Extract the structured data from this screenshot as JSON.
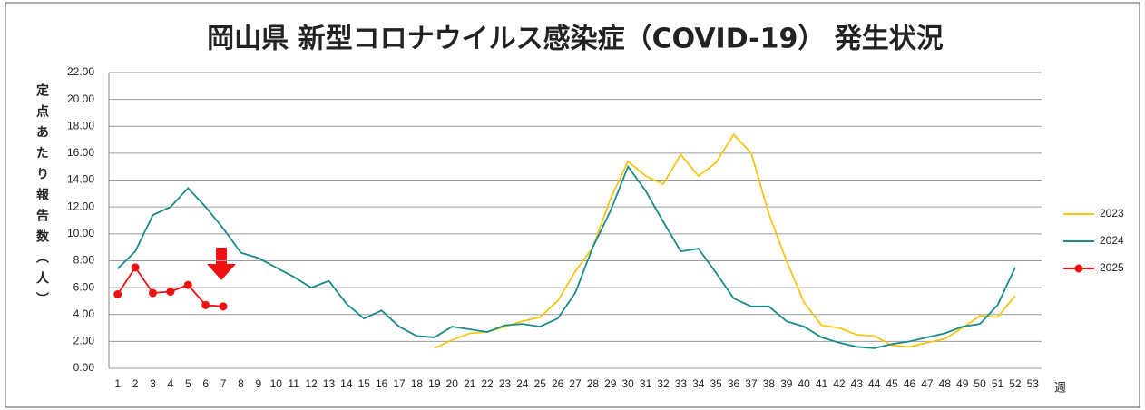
{
  "chart_data": {
    "type": "line",
    "title": "岡山県 新型コロナウイルス感染症（COVID-19） 発生状況",
    "y_label": "定点あたり報告数（人）",
    "x_label": "週",
    "categories": [
      "1",
      "2",
      "3",
      "4",
      "5",
      "6",
      "7",
      "8",
      "9",
      "10",
      "11",
      "12",
      "13",
      "14",
      "15",
      "16",
      "17",
      "18",
      "19",
      "20",
      "21",
      "22",
      "23",
      "24",
      "25",
      "26",
      "27",
      "28",
      "29",
      "30",
      "31",
      "32",
      "33",
      "34",
      "35",
      "36",
      "37",
      "38",
      "39",
      "40",
      "41",
      "42",
      "43",
      "44",
      "45",
      "46",
      "47",
      "48",
      "49",
      "50",
      "51",
      "52",
      "53"
    ],
    "series": [
      {
        "name": "2023",
        "color": "#f5c518",
        "markers": false,
        "values": [
          null,
          null,
          null,
          null,
          null,
          null,
          null,
          null,
          null,
          null,
          null,
          null,
          null,
          null,
          null,
          null,
          null,
          null,
          1.5,
          2.1,
          2.6,
          2.7,
          3.1,
          3.5,
          3.8,
          5.0,
          7.2,
          9.0,
          12.6,
          15.4,
          14.3,
          13.7,
          15.9,
          14.3,
          15.3,
          17.4,
          16.0,
          11.5,
          8.0,
          4.9,
          3.2,
          3.0,
          2.5,
          2.4,
          1.7,
          1.6,
          1.9,
          2.2,
          3.0,
          3.9,
          3.8,
          5.4,
          null
        ]
      },
      {
        "name": "2024",
        "color": "#1a8a8a",
        "markers": false,
        "values": [
          7.4,
          8.7,
          11.4,
          12.0,
          13.4,
          12.0,
          10.4,
          8.6,
          8.2,
          7.5,
          6.8,
          6.0,
          6.5,
          4.8,
          3.7,
          4.3,
          3.1,
          2.4,
          2.3,
          3.1,
          2.9,
          2.7,
          3.2,
          3.3,
          3.1,
          3.7,
          5.6,
          9.0,
          11.7,
          15.0,
          13.2,
          10.9,
          8.7,
          8.9,
          7.1,
          5.2,
          4.6,
          4.6,
          3.5,
          3.1,
          2.3,
          1.9,
          1.6,
          1.5,
          1.8,
          2.0,
          2.3,
          2.6,
          3.1,
          3.3,
          4.7,
          7.5,
          null
        ]
      },
      {
        "name": "2025",
        "color": "#ee1111",
        "markers": true,
        "values": [
          5.5,
          7.5,
          5.6,
          5.7,
          6.2,
          4.7,
          4.6,
          null,
          null,
          null,
          null,
          null,
          null,
          null,
          null,
          null,
          null,
          null,
          null,
          null,
          null,
          null,
          null,
          null,
          null,
          null,
          null,
          null,
          null,
          null,
          null,
          null,
          null,
          null,
          null,
          null,
          null,
          null,
          null,
          null,
          null,
          null,
          null,
          null,
          null,
          null,
          null,
          null,
          null,
          null,
          null,
          null,
          null
        ]
      }
    ],
    "ylim": [
      0,
      22
    ],
    "yticks": [
      {
        "value": 0,
        "label": "0.00"
      },
      {
        "value": 2,
        "label": "2.00"
      },
      {
        "value": 4,
        "label": "4.00"
      },
      {
        "value": 6,
        "label": "6.00"
      },
      {
        "value": 8,
        "label": "8.00"
      },
      {
        "value": 10,
        "label": "10.00"
      },
      {
        "value": 12,
        "label": "12.00"
      },
      {
        "value": 14,
        "label": "14.00"
      },
      {
        "value": 16,
        "label": "16.00"
      },
      {
        "value": 18,
        "label": "18.00"
      },
      {
        "value": 20,
        "label": "20.00"
      },
      {
        "value": 22,
        "label": "22.00"
      }
    ],
    "grid": true,
    "legend": "right"
  }
}
